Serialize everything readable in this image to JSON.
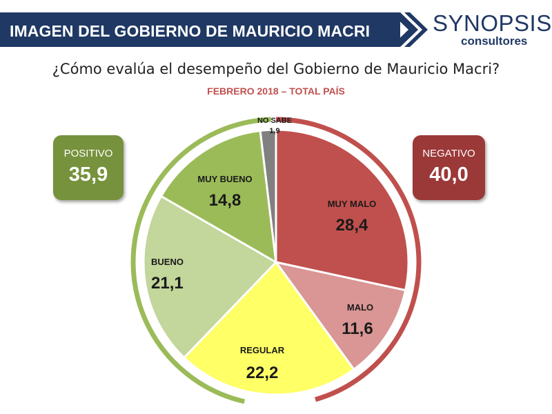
{
  "header": {
    "title": "IMAGEN DEL GOBIERNO DE MAURICIO MACRI"
  },
  "logo": {
    "main": "SYNOPSIS",
    "sub": "consultores"
  },
  "question": "¿Cómo evalúa el desempeño del Gobierno de Mauricio Macri?",
  "subtitle": "FEBRERO 2018 – TOTAL PAÍS",
  "totals": {
    "positive": {
      "label": "POSITIVO",
      "value": "35,9",
      "color": "#76923c"
    },
    "negative": {
      "label": "NEGATIVO",
      "value": "40,0",
      "color": "#9b3838"
    }
  },
  "chart_data": {
    "type": "pie",
    "title": "",
    "slices": [
      {
        "label": "MUY MALO",
        "value": 28.4,
        "display": "28,4",
        "color": "#c0504d"
      },
      {
        "label": "MALO",
        "value": 11.6,
        "display": "11,6",
        "color": "#d99694"
      },
      {
        "label": "REGULAR",
        "value": 22.2,
        "display": "22,2",
        "color": "#ffff66"
      },
      {
        "label": "BUENO",
        "value": 21.1,
        "display": "21,1",
        "color": "#c3d69b"
      },
      {
        "label": "MUY BUENO",
        "value": 14.8,
        "display": "14,8",
        "color": "#9bbb59"
      },
      {
        "label": "NO SABE",
        "value": 1.9,
        "display": "1,9",
        "color": "#808080"
      }
    ],
    "groups": [
      {
        "label": "NEGATIVO",
        "value": 40.0,
        "color": "#c0504d"
      },
      {
        "label": "POSITIVO",
        "value": 35.9,
        "color": "#9bbb59"
      }
    ]
  }
}
